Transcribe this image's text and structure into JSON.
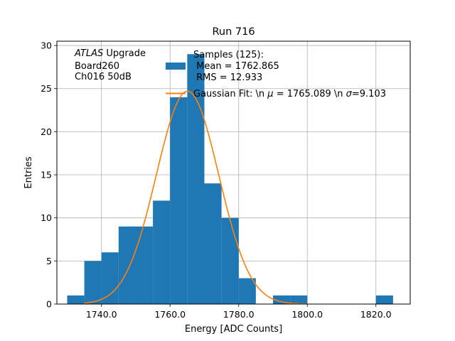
{
  "chart_data": {
    "type": "bar",
    "title": "Run 716",
    "xlabel": "Energy [ADC Counts]",
    "ylabel": "Entries",
    "xlim": [
      1727,
      1830
    ],
    "ylim": [
      0,
      30.5
    ],
    "grid": true,
    "xticks": [
      1740,
      1760,
      1780,
      1800,
      1820
    ],
    "xtick_labels": [
      "1740.0",
      "1760.0",
      "1780.0",
      "1800.0",
      "1820.0"
    ],
    "yticks": [
      0,
      5,
      10,
      15,
      20,
      25,
      30
    ],
    "ytick_labels": [
      "0",
      "5",
      "10",
      "15",
      "20",
      "25",
      "30"
    ],
    "annotation": {
      "lines": [
        {
          "italic": "ATLAS",
          "rest": " Upgrade"
        },
        {
          "italic": "",
          "rest": " Board260"
        },
        {
          "italic": "",
          "rest": " Ch016 50dB"
        }
      ]
    },
    "legend": {
      "placement": "top-center",
      "histogram_lines": [
        "Samples (125):",
        " Mean = 1762.865",
        " RMS = 12.933"
      ],
      "fit_label_prefix": "Gaussian Fit: \\n ",
      "fit_label_mu_symbol": "μ",
      "fit_label_middle": " = 1765.089 \\n ",
      "fit_label_sigma_symbol": "σ",
      "fit_label_suffix": "=9.103"
    },
    "histogram": {
      "color": "#1f77b4",
      "bin_edges": [
        1730,
        1735,
        1740,
        1745,
        1750,
        1755,
        1760,
        1765,
        1770,
        1775,
        1780,
        1785,
        1790,
        1795,
        1800,
        1805,
        1810,
        1815,
        1820,
        1825
      ],
      "counts": [
        1,
        5,
        6,
        9,
        9,
        12,
        24,
        29,
        14,
        10,
        3,
        0,
        1,
        1,
        0,
        0,
        0,
        0,
        1
      ]
    },
    "fit": {
      "type": "gaussian",
      "color": "#ff7f0e",
      "mu": 1765.089,
      "sigma": 9.103,
      "amplitude": 24.7,
      "x_range": [
        1735,
        1800
      ]
    }
  }
}
